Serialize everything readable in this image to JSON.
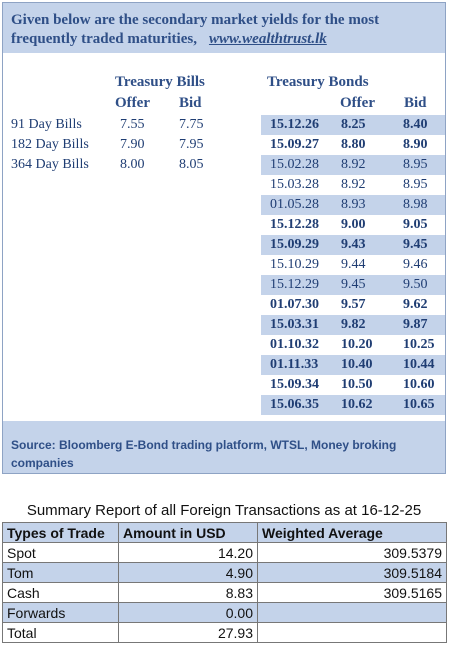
{
  "intro": {
    "text": "Given below are the secondary market yields for the most frequently traded maturities,",
    "link": "www.wealthtrust.lk"
  },
  "bills": {
    "title": "Treasury Bills",
    "offer_label": "Offer",
    "bid_label": "Bid",
    "rows": [
      {
        "label": "91 Day Bills",
        "offer": "7.55",
        "bid": "7.75"
      },
      {
        "label": "182 Day Bills",
        "offer": "7.90",
        "bid": "7.95"
      },
      {
        "label": "364 Day Bills",
        "offer": "8.00",
        "bid": "8.05"
      }
    ]
  },
  "bonds": {
    "title": "Treasury Bonds",
    "offer_label": "Offer",
    "bid_label": "Bid",
    "rows": [
      {
        "maturity": "15.12.26",
        "offer": "8.25",
        "bid": "8.40"
      },
      {
        "maturity": "15.09.27",
        "offer": "8.80",
        "bid": "8.90"
      },
      {
        "maturity": "15.02.28",
        "offer": "8.92",
        "bid": "8.95"
      },
      {
        "maturity": "15.03.28",
        "offer": "8.92",
        "bid": "8.95"
      },
      {
        "maturity": "01.05.28",
        "offer": "8.93",
        "bid": "8.98"
      },
      {
        "maturity": "15.12.28",
        "offer": "9.00",
        "bid": "9.05"
      },
      {
        "maturity": "15.09.29",
        "offer": "9.43",
        "bid": "9.45"
      },
      {
        "maturity": "15.10.29",
        "offer": "9.44",
        "bid": "9.46"
      },
      {
        "maturity": "15.12.29",
        "offer": "9.45",
        "bid": "9.50"
      },
      {
        "maturity": "01.07.30",
        "offer": "9.57",
        "bid": "9.62"
      },
      {
        "maturity": "15.03.31",
        "offer": "9.82",
        "bid": "9.87"
      },
      {
        "maturity": "01.10.32",
        "offer": "10.20",
        "bid": "10.25"
      },
      {
        "maturity": "01.11.33",
        "offer": "10.40",
        "bid": "10.44"
      },
      {
        "maturity": "15.09.34",
        "offer": "10.50",
        "bid": "10.60"
      },
      {
        "maturity": "15.06.35",
        "offer": "10.62",
        "bid": "10.65"
      }
    ]
  },
  "source": "Source: Bloomberg E-Bond trading platform, WTSL, Money broking companies",
  "summary": {
    "title": "Summary Report of all Foreign Transactions as at 16-12-25",
    "headers": [
      "Types of Trade",
      "Amount in USD",
      "Weighted Average"
    ],
    "rows": [
      {
        "type": "Spot",
        "amount": "14.20",
        "wavg": "309.5379"
      },
      {
        "type": "Tom",
        "amount": "4.90",
        "wavg": "309.5184"
      },
      {
        "type": "Cash",
        "amount": "8.83",
        "wavg": "309.5165"
      },
      {
        "type": "Forwards",
        "amount": "0.00",
        "wavg": ""
      },
      {
        "type": "Total",
        "amount": "27.93",
        "wavg": ""
      }
    ]
  },
  "colors": {
    "band": "#c4d3ea",
    "heading": "#2f4f87",
    "value_text": "#1f3d73"
  }
}
